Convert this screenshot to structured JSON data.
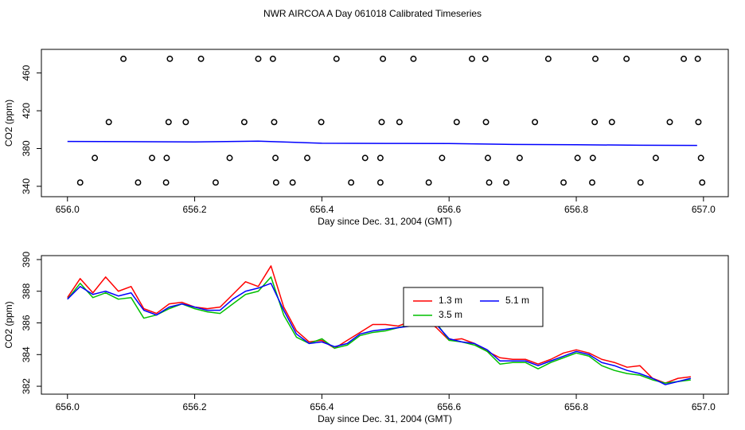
{
  "chart_data": [
    {
      "type": "scatter",
      "title": "NWR AIRCOA A  Day 061018  Calibrated Timeseries",
      "xlabel": "Day since Dec. 31, 2004 (GMT)",
      "ylabel": "CO2 (ppm)",
      "xlim": [
        655.959,
        657.039
      ],
      "ylim": [
        329,
        485
      ],
      "xticks": [
        {
          "value": 656,
          "label": "656.0"
        },
        656.2,
        656.4,
        656.6,
        656.8,
        {
          "value": 657,
          "label": "657.0"
        }
      ],
      "yticks": [
        340,
        380,
        420,
        460
      ],
      "series": [
        {
          "type": "scatter",
          "color": "#000000",
          "x": [
            656.088,
            656.161,
            656.21,
            656.3,
            656.323,
            656.423,
            656.496,
            656.544,
            656.636,
            656.657,
            656.756,
            656.83,
            656.879,
            656.969,
            656.991,
            656.065,
            656.159,
            656.186,
            656.278,
            656.325,
            656.399,
            656.494,
            656.522,
            656.612,
            656.658,
            656.735,
            656.829,
            656.856,
            656.947,
            656.992,
            656.043,
            656.133,
            656.156,
            656.255,
            656.327,
            656.377,
            656.468,
            656.492,
            656.589,
            656.661,
            656.711,
            656.802,
            656.826,
            656.925,
            656.996,
            656.02,
            656.111,
            656.155,
            656.233,
            656.328,
            656.354,
            656.446,
            656.492,
            656.568,
            656.663,
            656.69,
            656.78,
            656.825,
            656.901,
            656.998
          ],
          "values": [
            475,
            475,
            475,
            475,
            475,
            475,
            475,
            475,
            475,
            475,
            475,
            475,
            475,
            475,
            475,
            408,
            408,
            408,
            408,
            408,
            408,
            408,
            408,
            408,
            408,
            408,
            408,
            408,
            408,
            408,
            370,
            370,
            370,
            370,
            370,
            370,
            370,
            370,
            370,
            370,
            370,
            370,
            370,
            370,
            370,
            344,
            344,
            344,
            344,
            344,
            344,
            344,
            344,
            344,
            344,
            344,
            344,
            344,
            344,
            344
          ]
        },
        {
          "type": "line",
          "color": "#0000ff",
          "x": [
            656.0,
            656.1,
            656.2,
            656.3,
            656.4,
            656.5,
            656.6,
            656.7,
            656.8,
            656.9,
            656.99
          ],
          "values": [
            387.5,
            387.3,
            387.0,
            387.8,
            385.6,
            385.4,
            385.3,
            384.3,
            384.0,
            383.5,
            383.3
          ]
        }
      ]
    },
    {
      "type": "line",
      "xlabel": "Day since Dec. 31, 2004 (GMT)",
      "ylabel": "CO2 (ppm)",
      "xlim": [
        655.959,
        657.039
      ],
      "ylim": [
        381.5,
        390.25
      ],
      "xticks": [
        {
          "value": 656,
          "label": "656.0"
        },
        656.2,
        656.4,
        656.6,
        656.8,
        {
          "value": 657,
          "label": "657.0"
        }
      ],
      "yticks": [
        382,
        384,
        386,
        388,
        390
      ],
      "x": [
        656.0,
        656.02,
        656.04,
        656.06,
        656.08,
        656.1,
        656.12,
        656.14,
        656.16,
        656.18,
        656.2,
        656.22,
        656.24,
        656.26,
        656.28,
        656.3,
        656.32,
        656.34,
        656.36,
        656.38,
        656.4,
        656.42,
        656.44,
        656.46,
        656.48,
        656.5,
        656.52,
        656.54,
        656.56,
        656.58,
        656.6,
        656.62,
        656.64,
        656.66,
        656.68,
        656.7,
        656.72,
        656.74,
        656.76,
        656.78,
        656.8,
        656.82,
        656.84,
        656.86,
        656.88,
        656.9,
        656.92,
        656.94,
        656.96,
        656.98
      ],
      "series": [
        {
          "name": "1.3 m",
          "color": "#ff0000",
          "values": [
            387.6,
            388.8,
            387.9,
            388.9,
            388.0,
            388.3,
            386.9,
            386.6,
            387.2,
            387.3,
            387.0,
            386.9,
            387.0,
            387.8,
            388.6,
            388.3,
            389.6,
            387.0,
            385.5,
            384.8,
            384.9,
            384.4,
            384.9,
            385.4,
            385.9,
            385.9,
            385.8,
            386.1,
            386.3,
            385.7,
            384.9,
            385.0,
            384.7,
            384.2,
            383.8,
            383.7,
            383.7,
            383.4,
            383.7,
            384.1,
            384.3,
            384.1,
            383.7,
            383.5,
            383.2,
            383.3,
            382.5,
            382.2,
            382.5,
            382.6
          ]
        },
        {
          "name": "3.5 m",
          "color": "#00c000",
          "values": [
            387.5,
            388.5,
            387.6,
            387.9,
            387.5,
            387.6,
            386.3,
            386.5,
            386.9,
            387.2,
            386.9,
            386.7,
            386.6,
            387.2,
            387.8,
            388.0,
            388.9,
            386.5,
            385.1,
            384.7,
            385.0,
            384.4,
            384.6,
            385.2,
            385.4,
            385.5,
            385.7,
            385.9,
            386.0,
            386.0,
            384.9,
            384.8,
            384.6,
            384.2,
            383.4,
            383.5,
            383.5,
            383.1,
            383.5,
            383.8,
            384.1,
            383.9,
            383.3,
            383.0,
            382.8,
            382.7,
            382.4,
            382.2,
            382.3,
            382.4
          ]
        },
        {
          "name": "5.1 m",
          "color": "#0000ff",
          "values": [
            387.5,
            388.3,
            387.8,
            388.0,
            387.7,
            387.9,
            386.8,
            386.5,
            387.0,
            387.2,
            387.0,
            386.8,
            386.8,
            387.5,
            388.0,
            388.2,
            388.5,
            386.8,
            385.3,
            384.7,
            384.8,
            384.5,
            384.7,
            385.3,
            385.5,
            385.6,
            385.7,
            385.8,
            386.2,
            385.9,
            385.0,
            384.8,
            384.7,
            384.3,
            383.6,
            383.6,
            383.6,
            383.3,
            383.6,
            383.9,
            384.2,
            384.0,
            383.5,
            383.3,
            383.0,
            382.8,
            382.5,
            382.1,
            382.3,
            382.5
          ]
        }
      ]
    }
  ]
}
